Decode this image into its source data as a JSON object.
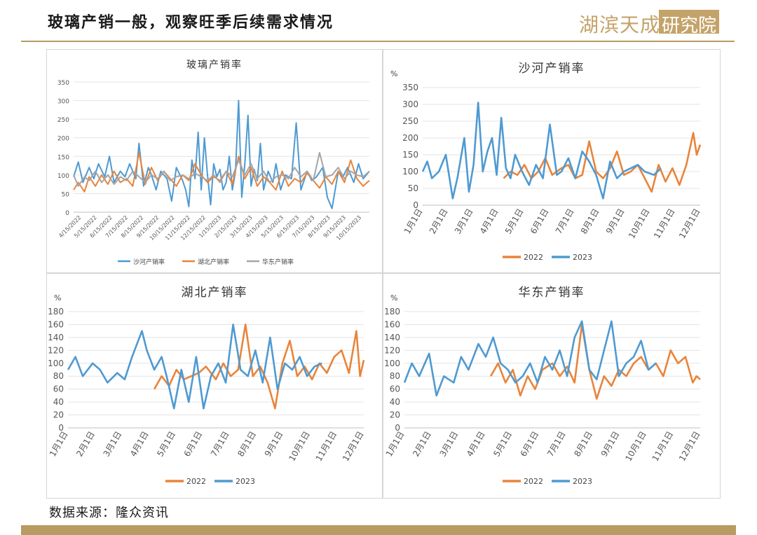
{
  "page": {
    "title": "玻璃产销一般，观察旺季后续需求情况",
    "brand_text": "湖滨天成",
    "brand_box_text": "研究院",
    "source": "数据来源：隆众资讯",
    "colors": {
      "accent": "#b89b60",
      "brand": "#c4a36a"
    }
  },
  "chart_data": [
    {
      "type": "line",
      "title": "玻璃产销率",
      "ylabel": "",
      "ylim": [
        0,
        350
      ],
      "yticks": [
        0,
        50,
        100,
        150,
        200,
        250,
        300,
        350
      ],
      "xlabels": [
        "4/15/2022",
        "5/15/2022",
        "6/15/2022",
        "7/15/2022",
        "8/15/2022",
        "9/15/2022",
        "10/15/2022",
        "11/15/2022",
        "12/15/2022",
        "1/15/2023",
        "2/15/2023",
        "3/15/2023",
        "4/15/2023",
        "5/15/2023",
        "6/15/2023",
        "7/15/2023",
        "8/15/2023",
        "9/15/2023",
        "10/15/2023"
      ],
      "xlim": [
        0,
        19
      ],
      "legend_position": "bottom",
      "series": [
        {
          "name": "沙河产销率",
          "color": "#4e9ad2",
          "x": [
            0,
            0.3,
            0.6,
            1,
            1.3,
            1.6,
            2,
            2.3,
            2.6,
            3,
            3.3,
            3.6,
            4,
            4.2,
            4.5,
            4.8,
            5,
            5.3,
            5.6,
            6,
            6.3,
            6.6,
            7,
            7.2,
            7.4,
            7.6,
            7.8,
            8,
            8.2,
            8.4,
            8.6,
            8.8,
            9,
            9.2,
            9.4,
            9.6,
            9.8,
            10,
            10.2,
            10.4,
            10.6,
            10.8,
            11,
            11.2,
            11.4,
            11.6,
            11.8,
            12,
            12.2,
            12.5,
            12.8,
            13,
            13.3,
            13.6,
            14,
            14.3,
            14.6,
            15,
            15.3,
            15.6,
            16,
            16.3,
            16.6,
            17,
            17.3,
            17.6,
            18,
            18.3,
            18.6,
            19
          ],
          "y": [
            95,
            135,
            80,
            120,
            90,
            130,
            95,
            150,
            80,
            110,
            95,
            130,
            90,
            185,
            70,
            120,
            100,
            60,
            110,
            90,
            30,
            120,
            85,
            60,
            15,
            140,
            90,
            215,
            60,
            200,
            100,
            20,
            130,
            95,
            115,
            60,
            80,
            150,
            60,
            110,
            300,
            40,
            130,
            260,
            70,
            115,
            85,
            185,
            60,
            110,
            80,
            130,
            60,
            100,
            90,
            240,
            60,
            110,
            85,
            95,
            120,
            40,
            10,
            110,
            95,
            120,
            80,
            130,
            90,
            110
          ]
        },
        {
          "name": "湖北产销率",
          "color": "#e9843a",
          "x": [
            0,
            0.3,
            0.7,
            1,
            1.4,
            1.8,
            2.2,
            2.6,
            3,
            3.4,
            3.8,
            4.2,
            4.6,
            5,
            5.4,
            5.8,
            6.2,
            6.6,
            7,
            7.4,
            7.8,
            8.2,
            8.6,
            9,
            9.4,
            9.8,
            10.2,
            10.6,
            11,
            11.4,
            11.8,
            12.2,
            12.6,
            13,
            13.4,
            13.8,
            14.2,
            14.6,
            15,
            15.4,
            15.8,
            16.2,
            16.6,
            17,
            17.4,
            17.8,
            18.2,
            18.6,
            19
          ],
          "y": [
            60,
            80,
            55,
            95,
            70,
            100,
            75,
            110,
            80,
            90,
            70,
            160,
            75,
            120,
            85,
            110,
            90,
            70,
            100,
            85,
            130,
            100,
            80,
            95,
            85,
            110,
            75,
            150,
            90,
            120,
            70,
            95,
            80,
            60,
            110,
            70,
            90,
            80,
            105,
            85,
            65,
            95,
            75,
            110,
            80,
            140,
            90,
            70,
            85
          ]
        },
        {
          "name": "华东产销率",
          "color": "#a5a5a5",
          "x": [
            0,
            0.3,
            0.7,
            1,
            1.4,
            1.8,
            2.2,
            2.6,
            3,
            3.4,
            3.8,
            4.2,
            4.6,
            5,
            5.4,
            5.8,
            6.2,
            6.6,
            7,
            7.4,
            7.8,
            8.2,
            8.6,
            9,
            9.4,
            9.8,
            10.2,
            10.6,
            11,
            11.4,
            11.8,
            12.2,
            12.6,
            13,
            13.4,
            13.8,
            14.2,
            14.6,
            15,
            15.4,
            15.8,
            16.2,
            16.6,
            17,
            17.4,
            17.8,
            18.2,
            18.6,
            19
          ],
          "y": [
            100,
            70,
            95,
            85,
            110,
            80,
            100,
            75,
            95,
            85,
            110,
            95,
            80,
            100,
            90,
            110,
            85,
            95,
            100,
            90,
            105,
            95,
            85,
            100,
            80,
            110,
            95,
            140,
            100,
            130,
            90,
            110,
            80,
            95,
            100,
            90,
            120,
            95,
            110,
            85,
            160,
            95,
            100,
            120,
            90,
            110,
            100,
            95,
            110
          ]
        }
      ]
    },
    {
      "type": "line",
      "title": "沙河产销率",
      "ylabel": "%",
      "ylim": [
        0,
        350
      ],
      "yticks": [
        0,
        50,
        100,
        150,
        200,
        250,
        300,
        350
      ],
      "xlabels": [
        "1月1日",
        "2月1日",
        "3月1日",
        "4月1日",
        "5月1日",
        "6月1日",
        "7月1日",
        "8月1日",
        "9月1日",
        "10月1日",
        "11月1日",
        "12月1日"
      ],
      "xlim": [
        1,
        13
      ],
      "legend_position": "bottom",
      "series": [
        {
          "name": "2022",
          "color": "#e9843a",
          "x": [
            4.5,
            4.8,
            5.1,
            5.4,
            5.7,
            6,
            6.3,
            6.6,
            7,
            7.3,
            7.6,
            7.9,
            8.2,
            8.5,
            8.8,
            9.1,
            9.4,
            9.7,
            10,
            10.3,
            10.6,
            10.9,
            11.2,
            11.5,
            11.8,
            12.1,
            12.4,
            12.7,
            12.85,
            13
          ],
          "y": [
            80,
            100,
            90,
            120,
            80,
            100,
            140,
            90,
            110,
            120,
            80,
            90,
            190,
            100,
            80,
            110,
            160,
            90,
            100,
            120,
            80,
            40,
            120,
            70,
            110,
            60,
            120,
            215,
            150,
            180
          ]
        },
        {
          "name": "2023",
          "color": "#4e9ad2",
          "x": [
            1,
            1.2,
            1.4,
            1.7,
            2,
            2.3,
            2.5,
            2.8,
            3,
            3.2,
            3.4,
            3.6,
            3.8,
            4,
            4.2,
            4.4,
            4.6,
            4.8,
            5,
            5.3,
            5.6,
            5.9,
            6.2,
            6.5,
            6.8,
            7,
            7.3,
            7.6,
            7.9,
            8.2,
            8.5,
            8.8,
            9.1,
            9.4,
            9.7,
            10,
            10.3,
            10.6,
            11,
            11.3
          ],
          "y": [
            100,
            130,
            80,
            100,
            150,
            20,
            80,
            200,
            40,
            120,
            305,
            100,
            160,
            200,
            90,
            260,
            110,
            80,
            150,
            100,
            60,
            120,
            80,
            240,
            90,
            100,
            140,
            80,
            160,
            130,
            90,
            20,
            130,
            80,
            100,
            110,
            120,
            100,
            90,
            110
          ]
        }
      ]
    },
    {
      "type": "line",
      "title": "湖北产销率",
      "ylabel": "%",
      "ylim": [
        0,
        180
      ],
      "yticks": [
        0,
        20,
        40,
        60,
        80,
        100,
        120,
        140,
        160,
        180
      ],
      "xlabels": [
        "1月1日",
        "2月1日",
        "3月1日",
        "4月1日",
        "5月1日",
        "6月1日",
        "7月1日",
        "8月1日",
        "9月1日",
        "10月1日",
        "11月1日",
        "12月1日"
      ],
      "xlim": [
        1,
        13
      ],
      "legend_position": "bottom",
      "series": [
        {
          "name": "2022",
          "color": "#e9843a",
          "x": [
            4.5,
            4.8,
            5.1,
            5.4,
            5.7,
            6,
            6.3,
            6.6,
            7,
            7.3,
            7.6,
            7.9,
            8.2,
            8.5,
            8.8,
            9.1,
            9.4,
            9.7,
            10,
            10.3,
            10.6,
            10.9,
            11.2,
            11.5,
            11.8,
            12.1,
            12.4,
            12.7,
            12.85,
            13
          ],
          "y": [
            60,
            80,
            65,
            90,
            75,
            80,
            85,
            95,
            75,
            100,
            80,
            90,
            160,
            80,
            95,
            70,
            30,
            100,
            135,
            80,
            95,
            75,
            100,
            85,
            110,
            120,
            85,
            150,
            80,
            105
          ]
        },
        {
          "name": "2023",
          "color": "#4e9ad2",
          "x": [
            1,
            1.3,
            1.6,
            2,
            2.3,
            2.6,
            3,
            3.3,
            3.6,
            4,
            4.2,
            4.5,
            4.8,
            5,
            5.3,
            5.6,
            5.9,
            6.2,
            6.5,
            6.8,
            7.1,
            7.4,
            7.7,
            8,
            8.3,
            8.6,
            8.9,
            9.2,
            9.5,
            9.8,
            10.1,
            10.4,
            10.7,
            11,
            11.3
          ],
          "y": [
            90,
            110,
            80,
            100,
            90,
            70,
            85,
            75,
            110,
            150,
            120,
            90,
            110,
            80,
            30,
            90,
            40,
            110,
            30,
            80,
            100,
            70,
            160,
            90,
            80,
            120,
            70,
            140,
            60,
            100,
            90,
            110,
            80,
            95,
            100
          ]
        }
      ]
    },
    {
      "type": "line",
      "title": "华东产销率",
      "ylabel": "%",
      "ylim": [
        0,
        180
      ],
      "yticks": [
        0,
        20,
        40,
        60,
        80,
        100,
        120,
        140,
        160,
        180
      ],
      "xlabels": [
        "1月1日",
        "2月1日",
        "3月1日",
        "4月1日",
        "5月1日",
        "6月1日",
        "7月1日",
        "8月1日",
        "9月1日",
        "10月1日",
        "11月1日",
        "12月1日"
      ],
      "xlim": [
        1,
        13
      ],
      "legend_position": "bottom",
      "series": [
        {
          "name": "2022",
          "color": "#e9843a",
          "x": [
            4.5,
            4.8,
            5.1,
            5.4,
            5.7,
            6,
            6.3,
            6.6,
            7,
            7.3,
            7.6,
            7.9,
            8.2,
            8.5,
            8.8,
            9.1,
            9.4,
            9.7,
            10,
            10.3,
            10.6,
            10.9,
            11.2,
            11.5,
            11.8,
            12.1,
            12.4,
            12.7,
            12.85,
            13
          ],
          "y": [
            80,
            100,
            70,
            90,
            50,
            80,
            60,
            90,
            100,
            80,
            95,
            70,
            160,
            90,
            45,
            80,
            65,
            90,
            80,
            100,
            110,
            90,
            100,
            80,
            120,
            100,
            110,
            70,
            80,
            75
          ]
        },
        {
          "name": "2023",
          "color": "#4e9ad2",
          "x": [
            1,
            1.3,
            1.6,
            2,
            2.3,
            2.6,
            3,
            3.3,
            3.6,
            4,
            4.3,
            4.6,
            4.9,
            5.2,
            5.5,
            5.8,
            6.1,
            6.4,
            6.7,
            7,
            7.3,
            7.6,
            7.9,
            8.2,
            8.5,
            8.8,
            9.1,
            9.4,
            9.7,
            10,
            10.3,
            10.6,
            10.9,
            11.2
          ],
          "y": [
            70,
            100,
            80,
            115,
            50,
            80,
            70,
            110,
            90,
            130,
            110,
            140,
            100,
            90,
            70,
            80,
            100,
            70,
            110,
            90,
            120,
            80,
            140,
            165,
            90,
            75,
            120,
            165,
            80,
            100,
            110,
            135,
            90,
            100
          ]
        }
      ]
    }
  ]
}
